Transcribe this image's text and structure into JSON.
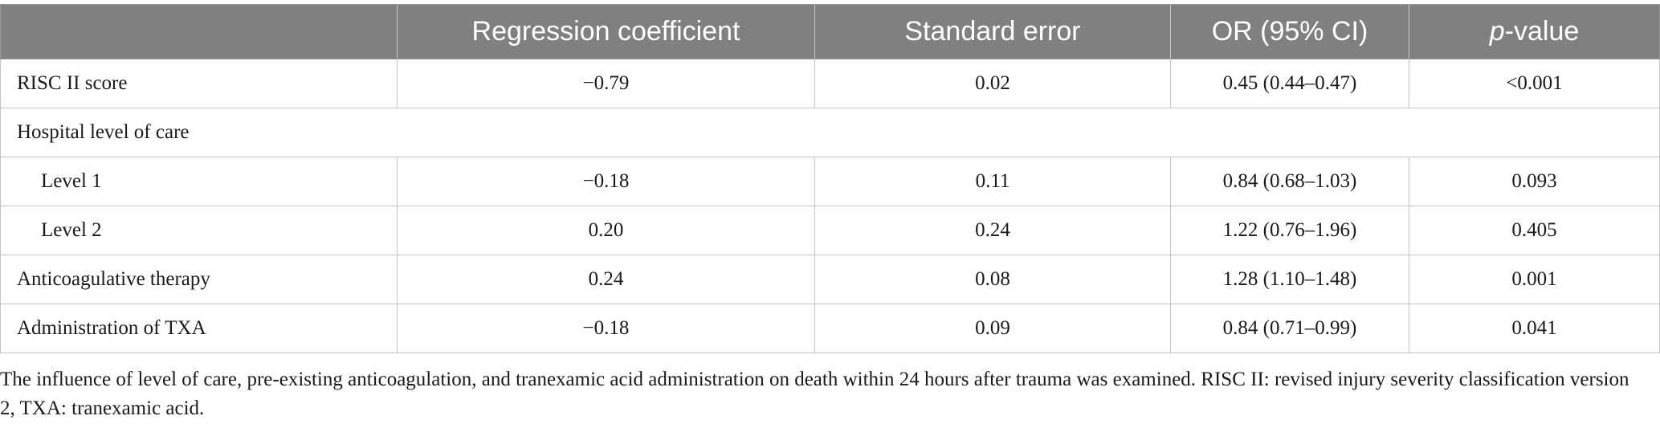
{
  "table": {
    "headers": [
      {
        "text": ""
      },
      {
        "text": "Regression coefficient"
      },
      {
        "text": "Standard error"
      },
      {
        "text": "OR (95% CI)"
      },
      {
        "italic": "p",
        "text": "-value"
      }
    ],
    "rows": [
      {
        "label": "RISC II score",
        "coef": "−0.79",
        "se": "0.02",
        "or": "0.45 (0.44–0.47)",
        "p": "<0.001"
      },
      {
        "group": "Hospital level of care"
      },
      {
        "label": "Level 1",
        "coef": "−0.18",
        "se": "0.11",
        "or": "0.84 (0.68–1.03)",
        "p": "0.093"
      },
      {
        "label": "Level 2",
        "coef": "0.20",
        "se": "0.24",
        "or": "1.22 (0.76–1.96)",
        "p": "0.405"
      },
      {
        "label": "Anticoagulative therapy",
        "coef": "0.24",
        "se": "0.08",
        "or": "1.28 (1.10–1.48)",
        "p": "0.001"
      },
      {
        "label": "Administration of TXA",
        "coef": "−0.18",
        "se": "0.09",
        "or": "0.84 (0.71–0.99)",
        "p": "0.041"
      }
    ]
  },
  "caption": "The influence of level of care, pre-existing anticoagulation, and tranexamic acid administration on death within 24 hours after trauma was examined. RISC II: revised injury severity classification version 2, TXA: tranexamic acid."
}
